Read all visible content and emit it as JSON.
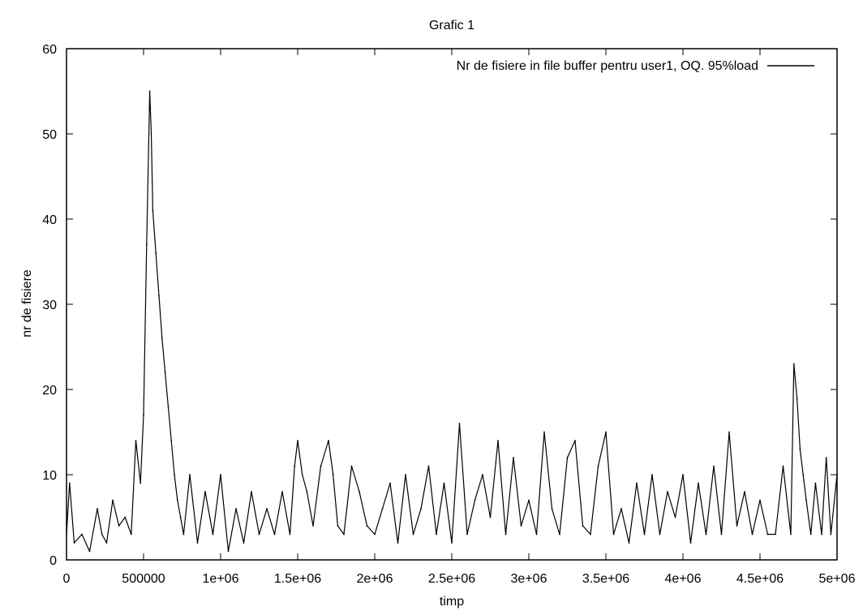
{
  "chart_data": {
    "type": "line",
    "title": "Grafic 1",
    "xlabel": "timp",
    "ylabel": "nr de fisiere",
    "xlim": [
      0,
      5000000
    ],
    "ylim": [
      0,
      60
    ],
    "x_ticks": [
      0,
      500000,
      1000000,
      1500000,
      2000000,
      2500000,
      3000000,
      3500000,
      4000000,
      4500000,
      5000000
    ],
    "x_tick_labels": [
      "0",
      "500000",
      "1e+06",
      "1.5e+06",
      "2e+06",
      "2.5e+06",
      "3e+06",
      "3.5e+06",
      "4e+06",
      "4.5e+06",
      "5e+06"
    ],
    "y_ticks": [
      0,
      10,
      20,
      30,
      40,
      50,
      60
    ],
    "y_tick_labels": [
      "0",
      "10",
      "20",
      "30",
      "40",
      "50",
      "60"
    ],
    "grid": false,
    "legend_position": "top-right",
    "line_color": "#000000",
    "series": [
      {
        "name": "Nr de fisiere in file buffer pentru user1, OQ. 95%load",
        "x": [
          0,
          20000,
          50000,
          100000,
          150000,
          200000,
          230000,
          260000,
          300000,
          340000,
          380000,
          420000,
          450000,
          480000,
          500000,
          520000,
          540000,
          550000,
          560000,
          580000,
          600000,
          620000,
          640000,
          660000,
          680000,
          700000,
          720000,
          740000,
          760000,
          800000,
          850000,
          900000,
          950000,
          1000000,
          1050000,
          1100000,
          1150000,
          1200000,
          1250000,
          1300000,
          1350000,
          1400000,
          1450000,
          1480000,
          1500000,
          1530000,
          1560000,
          1600000,
          1650000,
          1700000,
          1730000,
          1760000,
          1800000,
          1850000,
          1900000,
          1950000,
          2000000,
          2050000,
          2100000,
          2150000,
          2200000,
          2250000,
          2300000,
          2350000,
          2400000,
          2450000,
          2500000,
          2550000,
          2600000,
          2650000,
          2700000,
          2750000,
          2800000,
          2850000,
          2900000,
          2950000,
          3000000,
          3050000,
          3100000,
          3150000,
          3200000,
          3250000,
          3300000,
          3350000,
          3400000,
          3450000,
          3500000,
          3550000,
          3600000,
          3650000,
          3700000,
          3750000,
          3800000,
          3850000,
          3900000,
          3950000,
          4000000,
          4050000,
          4100000,
          4150000,
          4200000,
          4250000,
          4300000,
          4350000,
          4400000,
          4450000,
          4500000,
          4550000,
          4600000,
          4650000,
          4700000,
          4720000,
          4740000,
          4760000,
          4780000,
          4800000,
          4830000,
          4860000,
          4900000,
          4930000,
          4960000,
          5000000
        ],
        "y": [
          3,
          9,
          2,
          3,
          1,
          6,
          3,
          2,
          7,
          4,
          5,
          3,
          14,
          9,
          17,
          37,
          55,
          50,
          41,
          36,
          31,
          26,
          22,
          18,
          14,
          10,
          7,
          5,
          3,
          10,
          2,
          8,
          3,
          10,
          1,
          6,
          2,
          8,
          3,
          6,
          3,
          8,
          3,
          11,
          14,
          10,
          8,
          4,
          11,
          14,
          10,
          4,
          3,
          11,
          8,
          4,
          3,
          6,
          9,
          2,
          10,
          3,
          6,
          11,
          3,
          9,
          2,
          16,
          3,
          7,
          10,
          5,
          14,
          3,
          12,
          4,
          7,
          3,
          15,
          6,
          3,
          12,
          14,
          4,
          3,
          11,
          15,
          3,
          6,
          2,
          9,
          3,
          10,
          3,
          8,
          5,
          10,
          2,
          9,
          3,
          11,
          3,
          15,
          4,
          8,
          3,
          7,
          3,
          3,
          11,
          3,
          23,
          19,
          13,
          10,
          7,
          3,
          9,
          3,
          12,
          3,
          10
        ]
      }
    ]
  }
}
